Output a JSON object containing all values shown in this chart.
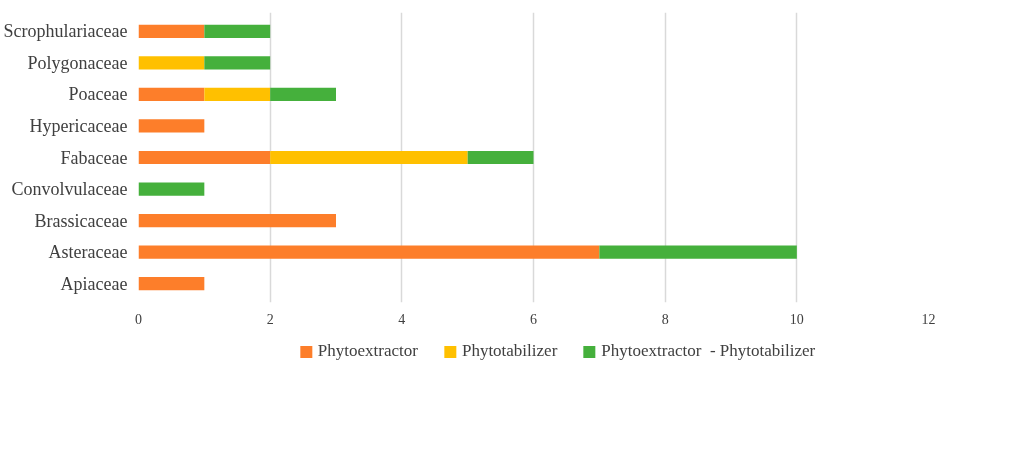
{
  "chart_data": {
    "type": "bar",
    "orientation": "horizontal",
    "stacked": true,
    "categories": [
      "Scrophulariaceae",
      "Polygonaceae",
      "Poaceae",
      "Hypericaceae",
      "Fabaceae",
      "Convolvulaceae",
      "Brassicaceae",
      "Asteraceae",
      "Apiaceae"
    ],
    "series": [
      {
        "name": "Phytoextractor",
        "color": "#fd7e2a",
        "values": [
          1,
          null,
          1,
          1,
          2,
          null,
          3,
          7,
          1
        ]
      },
      {
        "name": "Phytotabilizer",
        "color": "#ffc000",
        "values": [
          null,
          1,
          1,
          null,
          3,
          null,
          null,
          null,
          null
        ]
      },
      {
        "name": "Phytoextractor  - Phytotabilizer",
        "color": "#45b03c",
        "values": [
          1,
          1,
          1,
          null,
          1,
          1,
          null,
          3,
          null
        ]
      }
    ],
    "xlim": [
      0,
      12
    ],
    "xticks": [
      0,
      2,
      4,
      6,
      8,
      10,
      12
    ],
    "grid": "x",
    "legend": "bottom"
  }
}
